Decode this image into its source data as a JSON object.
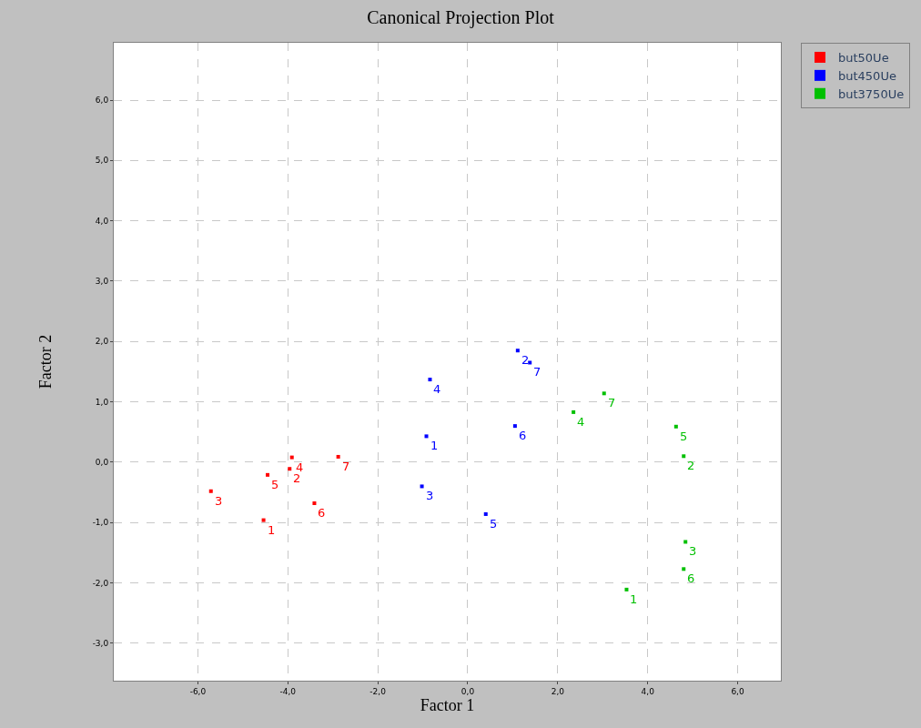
{
  "chart_data": {
    "type": "scatter",
    "title": "Canonical Projection Plot",
    "xlabel": "Factor 1",
    "ylabel": "Factor 2",
    "xlim": [
      -7.87,
      6.96
    ],
    "ylim": [
      -3.62,
      6.95
    ],
    "xticks": [
      {
        "value": -6,
        "label": "-6,0"
      },
      {
        "value": -4,
        "label": "-4,0"
      },
      {
        "value": -2,
        "label": "-2,0"
      },
      {
        "value": 0,
        "label": "0,0"
      },
      {
        "value": 2,
        "label": "2,0"
      },
      {
        "value": 4,
        "label": "4,0"
      },
      {
        "value": 6,
        "label": "6,0"
      }
    ],
    "yticks": [
      {
        "value": -3,
        "label": "-3,0"
      },
      {
        "value": -2,
        "label": "-2,0"
      },
      {
        "value": -1,
        "label": "-1,0"
      },
      {
        "value": 0,
        "label": "0,0"
      },
      {
        "value": 1,
        "label": "1,0"
      },
      {
        "value": 2,
        "label": "2,0"
      },
      {
        "value": 3,
        "label": "3,0"
      },
      {
        "value": 4,
        "label": "4,0"
      },
      {
        "value": 5,
        "label": "5,0"
      },
      {
        "value": 6,
        "label": "6,0"
      }
    ],
    "grid": true,
    "legend": "top right",
    "marker": "square",
    "series": [
      {
        "name": "but50Ue",
        "color": "#ff0000",
        "x": [
          -4.54,
          -3.96,
          -5.71,
          -3.91,
          -4.45,
          -3.41,
          -2.88
        ],
        "values": [
          -0.96,
          -0.11,
          -0.48,
          0.08,
          -0.21,
          -0.68,
          0.09
        ]
      },
      {
        "name": "but450Ue",
        "color": "#0000ff",
        "x": [
          -0.92,
          1.11,
          -1.02,
          -0.84,
          0.4,
          1.05,
          1.38
        ],
        "values": [
          0.43,
          1.85,
          -0.4,
          1.37,
          -0.86,
          0.6,
          1.65
        ]
      },
      {
        "name": "but3750Ue",
        "color": "#00c000",
        "x": [
          3.53,
          4.8,
          4.84,
          2.35,
          4.63,
          4.8,
          3.03
        ],
        "values": [
          -2.11,
          0.1,
          -1.32,
          0.83,
          0.59,
          -1.77,
          1.14
        ]
      }
    ],
    "annotations": [
      {
        "text": "1",
        "x": -4.54,
        "y": -0.96
      },
      {
        "text": "2",
        "x": -3.96,
        "y": -0.11
      },
      {
        "text": "3",
        "x": -5.71,
        "y": -0.48
      },
      {
        "text": "4",
        "x": -3.91,
        "y": 0.08
      },
      {
        "text": "5",
        "x": -4.45,
        "y": -0.21
      },
      {
        "text": "6",
        "x": -3.41,
        "y": -0.68
      },
      {
        "text": "7",
        "x": -2.88,
        "y": 0.09
      },
      {
        "text": "1",
        "x": -0.92,
        "y": 0.43
      },
      {
        "text": "2",
        "x": 1.11,
        "y": 1.85
      },
      {
        "text": "3",
        "x": -1.02,
        "y": -0.4
      },
      {
        "text": "4",
        "x": -0.84,
        "y": 1.37
      },
      {
        "text": "5",
        "x": 0.4,
        "y": -0.86
      },
      {
        "text": "6",
        "x": 1.05,
        "y": 0.6
      },
      {
        "text": "7",
        "x": 1.38,
        "y": 1.65
      },
      {
        "text": "1",
        "x": 3.53,
        "y": -2.11
      },
      {
        "text": "2",
        "x": 4.8,
        "y": 0.1
      },
      {
        "text": "3",
        "x": 4.84,
        "y": -1.32
      },
      {
        "text": "4",
        "x": 2.35,
        "y": 0.83
      },
      {
        "text": "5",
        "x": 4.63,
        "y": 0.59
      },
      {
        "text": "6",
        "x": 4.8,
        "y": -1.77
      },
      {
        "text": "7",
        "x": 3.03,
        "y": 1.14
      }
    ]
  }
}
